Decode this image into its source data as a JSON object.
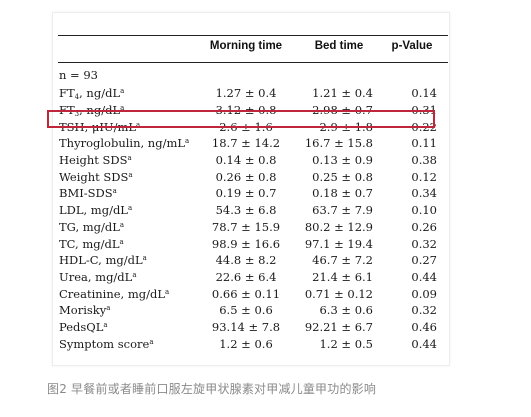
{
  "header": {
    "label": "",
    "col1": "Morning time",
    "col2": "Bed time",
    "col3": "p-Value"
  },
  "n_row": {
    "label": "n = 93"
  },
  "rows": [
    {
      "pre": "FT",
      "sub": "4",
      "post": ", ng/dL",
      "sup": "a",
      "morning": "1.27 ± 0.4",
      "bed": "1.21 ± 0.4",
      "p": "0.14"
    },
    {
      "pre": "FT",
      "sub": "3",
      "post": ", ng/dL",
      "sup": "a",
      "morning": "3.12 ± 0.8",
      "bed": "2.98 ± 0.7",
      "p": "0.31"
    },
    {
      "pre": "TSH, μIU/mL",
      "sub": "",
      "post": "",
      "sup": "a",
      "morning": "2.6 ± 1.6",
      "bed": "2.9 ± 1.8",
      "p": "0.22"
    },
    {
      "pre": "Thyroglobulin, ng/mL",
      "sub": "",
      "post": "",
      "sup": "a",
      "morning": "18.7 ± 14.2",
      "bed": "16.7 ± 15.8",
      "p": "0.11"
    },
    {
      "pre": "Height SDS",
      "sub": "",
      "post": "",
      "sup": "a",
      "morning": "0.14 ± 0.8",
      "bed": "0.13 ± 0.9",
      "p": "0.38"
    },
    {
      "pre": "Weight SDS",
      "sub": "",
      "post": "",
      "sup": "a",
      "morning": "0.26 ± 0.8",
      "bed": "0.25 ± 0.8",
      "p": "0.12"
    },
    {
      "pre": "BMI-SDS",
      "sub": "",
      "post": "",
      "sup": "a",
      "morning": "0.19 ± 0.7",
      "bed": "0.18 ± 0.7",
      "p": "0.34"
    },
    {
      "pre": "LDL, mg/dL",
      "sub": "",
      "post": "",
      "sup": "a",
      "morning": "54.3 ± 6.8",
      "bed": "63.7 ± 7.9",
      "p": "0.10"
    },
    {
      "pre": "TG, mg/dL",
      "sub": "",
      "post": "",
      "sup": "a",
      "morning": "78.7 ± 15.9",
      "bed": "80.2 ± 12.9",
      "p": "0.26"
    },
    {
      "pre": "TC, mg/dL",
      "sub": "",
      "post": "",
      "sup": "a",
      "morning": "98.9 ± 16.6",
      "bed": "97.1 ± 19.4",
      "p": "0.32"
    },
    {
      "pre": "HDL-C, mg/dL",
      "sub": "",
      "post": "",
      "sup": "a",
      "morning": "44.8 ± 8.2",
      "bed": "46.7 ± 7.2",
      "p": "0.27"
    },
    {
      "pre": "Urea, mg/dL",
      "sub": "",
      "post": "",
      "sup": "a",
      "morning": "22.6 ± 6.4",
      "bed": "21.4 ± 6.1",
      "p": "0.44"
    },
    {
      "pre": "Creatinine, mg/dL",
      "sub": "",
      "post": "",
      "sup": "a",
      "morning": "0.66 ± 0.11",
      "bed": "0.71 ± 0.12",
      "p": "0.09"
    },
    {
      "pre": "Morisky",
      "sub": "",
      "post": "",
      "sup": "a",
      "morning": "6.5 ± 0.6",
      "bed": "6.3 ± 0.6",
      "p": "0.32"
    },
    {
      "pre": "PedsQL",
      "sub": "",
      "post": "",
      "sup": "a",
      "morning": "93.14 ± 7.8",
      "bed": "92.21 ± 6.7",
      "p": "0.46"
    },
    {
      "pre": "Symptom score",
      "sub": "",
      "post": "",
      "sup": "a",
      "morning": "1.2 ± 0.6",
      "bed": "1.2 ± 0.5",
      "p": "0.44"
    }
  ],
  "highlight_color": "#c0263a",
  "caption": "图2 早餐前或者睡前口服左旋甲状腺素对甲减儿童甲功的影响"
}
